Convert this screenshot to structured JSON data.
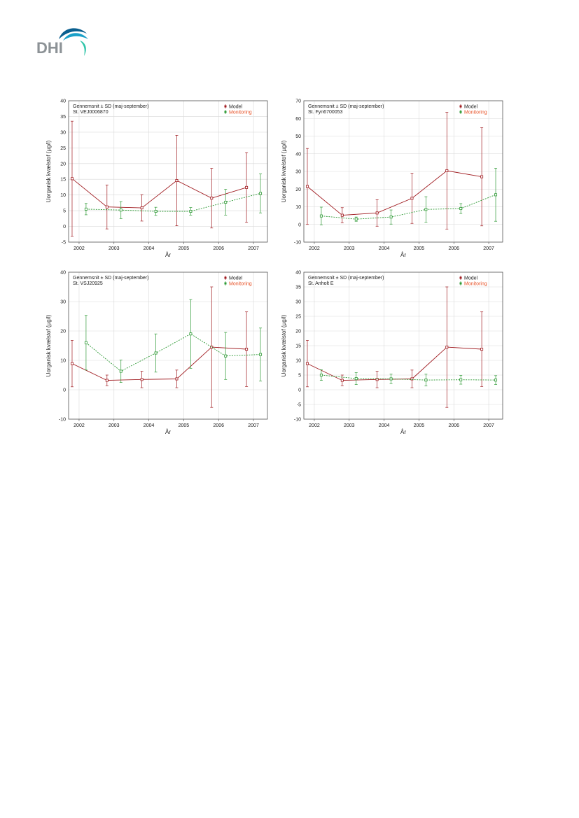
{
  "logo": {
    "text": "DHI",
    "color": "#8c9296",
    "wave_colors": [
      "#1aa0c8",
      "#2ec4a8",
      "#0a5f8f"
    ]
  },
  "colors": {
    "model": "#a01b20",
    "monitoring": "#2e9a35",
    "grid": "#d9d9d9",
    "axis": "#555555",
    "monitoring_legend_text": "#e8542a"
  },
  "chart_data": [
    {
      "type": "line",
      "title": "Gennemsnit ± SD (maj-september)",
      "subtitle": "St. VEJ0006870",
      "xlabel": "År",
      "ylabel": "Uorganisk kvælstof (µg/l)",
      "xlim": [
        2001.7,
        2007.4
      ],
      "ylim": [
        -5,
        40
      ],
      "yticks": [
        -5,
        0,
        5,
        10,
        15,
        20,
        25,
        30,
        35,
        40
      ],
      "xticks": [
        2002,
        2003,
        2004,
        2005,
        2006,
        2007
      ],
      "legend_position": "top-right",
      "series": [
        {
          "name": "Model",
          "style": "solid",
          "x": [
            2001.8,
            2002.8,
            2003.8,
            2004.8,
            2005.8,
            2006.8
          ],
          "y": [
            15.2,
            6.2,
            5.9,
            14.6,
            9.0,
            12.4
          ],
          "err": [
            18.3,
            7.0,
            4.2,
            14.4,
            9.5,
            11.1
          ]
        },
        {
          "name": "Monitoring",
          "style": "dashed",
          "x": [
            2002.2,
            2003.2,
            2004.2,
            2005.2,
            2006.2,
            2007.2
          ],
          "y": [
            5.5,
            5.2,
            4.8,
            4.8,
            7.7,
            10.5
          ],
          "err": [
            1.8,
            2.7,
            1.3,
            1.2,
            4.1,
            6.2
          ]
        }
      ]
    },
    {
      "type": "line",
      "title": "Gennemsnit ± SD (maj-september)",
      "subtitle": "St. Fyn6700053",
      "xlabel": "År",
      "ylabel": "Uorganisk kvælstof (µg/l)",
      "xlim": [
        2001.7,
        2007.4
      ],
      "ylim": [
        -10,
        70
      ],
      "yticks": [
        -10,
        0,
        10,
        20,
        30,
        40,
        50,
        60,
        70
      ],
      "xticks": [
        2002,
        2003,
        2004,
        2005,
        2006,
        2007
      ],
      "legend_position": "top-right",
      "series": [
        {
          "name": "Model",
          "style": "solid",
          "x": [
            2001.8,
            2002.8,
            2003.8,
            2004.8,
            2005.8,
            2006.8
          ],
          "y": [
            21.5,
            5.2,
            6.5,
            14.8,
            30.4,
            27.0
          ],
          "err": [
            21.5,
            4.3,
            7.5,
            14.2,
            33.0,
            27.8
          ]
        },
        {
          "name": "Monitoring",
          "style": "dashed",
          "x": [
            2002.2,
            2003.2,
            2004.2,
            2005.2,
            2006.2,
            2007.2
          ],
          "y": [
            4.8,
            3.0,
            4.2,
            8.5,
            9.0,
            16.8
          ],
          "err": [
            5.0,
            1.2,
            4.0,
            7.2,
            2.8,
            15.0
          ]
        }
      ]
    },
    {
      "type": "line",
      "title": "Gennemsnit ± SD (maj-september)",
      "subtitle": "St. VSJ20925",
      "xlabel": "År",
      "ylabel": "Uorganisk kvælstof (µg/l)",
      "xlim": [
        2001.7,
        2007.4
      ],
      "ylim": [
        -10,
        40
      ],
      "yticks": [
        -10,
        0,
        10,
        20,
        30,
        40
      ],
      "xticks": [
        2002,
        2003,
        2004,
        2005,
        2006,
        2007
      ],
      "legend_position": "top-right",
      "series": [
        {
          "name": "Model",
          "style": "solid",
          "x": [
            2001.8,
            2002.8,
            2003.8,
            2004.8,
            2005.8,
            2006.8
          ],
          "y": [
            8.9,
            3.2,
            3.5,
            3.7,
            14.5,
            13.8
          ],
          "err": [
            7.9,
            1.8,
            2.8,
            3.0,
            20.5,
            12.7
          ]
        },
        {
          "name": "Monitoring",
          "style": "dashed",
          "x": [
            2002.2,
            2003.2,
            2004.2,
            2005.2,
            2006.2,
            2007.2
          ],
          "y": [
            16.0,
            6.3,
            12.5,
            19.0,
            11.5,
            12.0
          ],
          "err": [
            9.3,
            3.8,
            6.5,
            11.7,
            8.0,
            9.0
          ]
        }
      ]
    },
    {
      "type": "line",
      "title": "Gennemsnit ± SD (maj-september)",
      "subtitle": "St. Anholt E",
      "xlabel": "År",
      "ylabel": "Uorganisk kvælstof (µg/l)",
      "xlim": [
        2001.7,
        2007.4
      ],
      "ylim": [
        -10,
        40
      ],
      "yticks": [
        -10,
        -5,
        0,
        5,
        10,
        15,
        20,
        25,
        30,
        35,
        40
      ],
      "xticks": [
        2002,
        2003,
        2004,
        2005,
        2006,
        2007
      ],
      "legend_position": "top-right",
      "series": [
        {
          "name": "Model",
          "style": "solid",
          "x": [
            2001.8,
            2002.8,
            2003.8,
            2004.8,
            2005.8,
            2006.8
          ],
          "y": [
            8.9,
            3.2,
            3.5,
            3.7,
            14.5,
            13.8
          ],
          "err": [
            7.9,
            1.8,
            2.8,
            3.0,
            20.5,
            12.7
          ]
        },
        {
          "name": "Monitoring",
          "style": "dashed",
          "x": [
            2002.2,
            2003.2,
            2004.2,
            2005.2,
            2006.2,
            2007.2
          ],
          "y": [
            5.0,
            3.8,
            3.7,
            3.3,
            3.4,
            3.3
          ],
          "err": [
            1.8,
            2.0,
            1.6,
            2.0,
            1.5,
            1.5
          ]
        }
      ]
    }
  ]
}
